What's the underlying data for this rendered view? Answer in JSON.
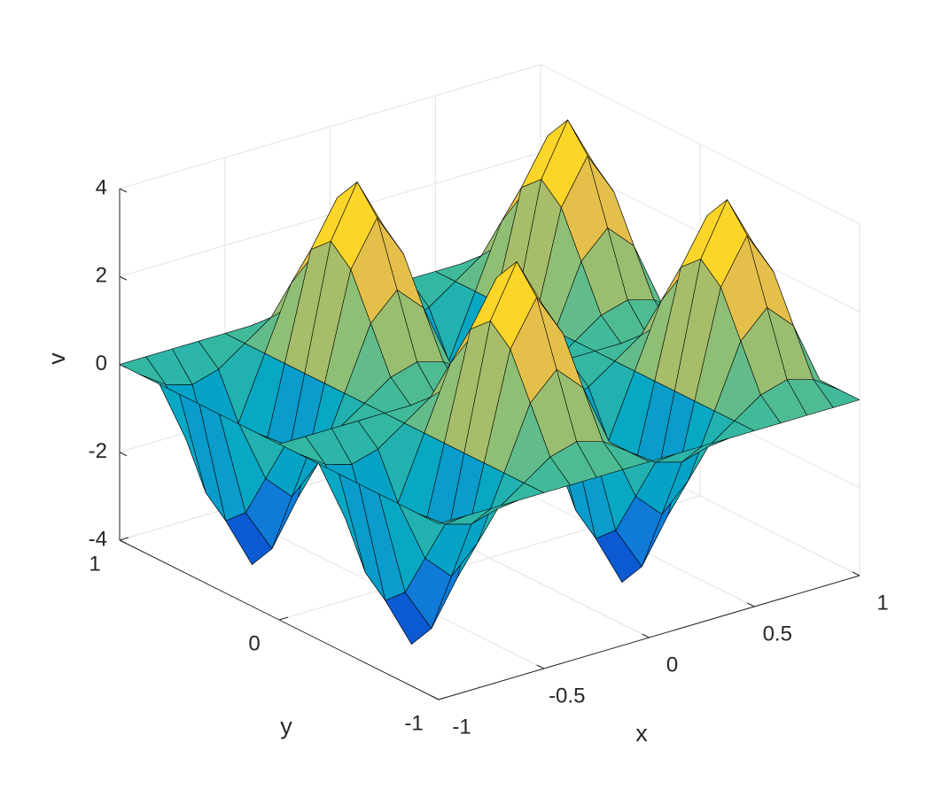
{
  "chart_data": {
    "type": "surface",
    "xlabel": "x",
    "ylabel": "y",
    "zlabel": "v",
    "x": [
      -1,
      -0.875,
      -0.75,
      -0.625,
      -0.5,
      -0.375,
      -0.25,
      -0.125,
      0,
      0.125,
      0.25,
      0.375,
      0.5,
      0.625,
      0.75,
      0.875,
      1
    ],
    "y": [
      -1,
      -0.875,
      -0.75,
      -0.625,
      -0.5,
      -0.375,
      -0.25,
      -0.125,
      0,
      0.125,
      0.25,
      0.375,
      0.5,
      0.625,
      0.75,
      0.875,
      1
    ],
    "z": [
      [
        0,
        0,
        0,
        0,
        0,
        0,
        0,
        0,
        0,
        0,
        0,
        0,
        0,
        0,
        0,
        0,
        0
      ],
      [
        0,
        -0.414,
        -0.586,
        -0.414,
        0,
        0.414,
        0.586,
        0.414,
        0,
        -0.414,
        -0.586,
        -0.414,
        0,
        0.414,
        0.586,
        0.414,
        0
      ],
      [
        0,
        -1.414,
        -2,
        -1.414,
        0,
        1.414,
        2,
        1.414,
        0,
        -1.414,
        -2,
        -1.414,
        0,
        1.414,
        2,
        1.414,
        0
      ],
      [
        0,
        -2.414,
        -3.414,
        -2.414,
        0,
        2.414,
        3.414,
        2.414,
        0,
        -2.414,
        -3.414,
        -2.414,
        0,
        2.414,
        3.414,
        2.414,
        0
      ],
      [
        0,
        -2.828,
        -4,
        -2.828,
        0,
        2.828,
        4,
        2.828,
        0,
        -2.828,
        -4,
        -2.828,
        0,
        2.828,
        4,
        2.828,
        0
      ],
      [
        0,
        -2.414,
        -3.414,
        -2.414,
        0,
        2.414,
        3.414,
        2.414,
        0,
        -2.414,
        -3.414,
        -2.414,
        0,
        2.414,
        3.414,
        2.414,
        0
      ],
      [
        0,
        -1.414,
        -2,
        -1.414,
        0,
        1.414,
        2,
        1.414,
        0,
        -1.414,
        -2,
        -1.414,
        0,
        1.414,
        2,
        1.414,
        0
      ],
      [
        0,
        -0.414,
        -0.586,
        -0.414,
        0,
        0.414,
        0.586,
        0.414,
        0,
        -0.414,
        -0.586,
        -0.414,
        0,
        0.414,
        0.586,
        0.414,
        0
      ],
      [
        0,
        0,
        0,
        0,
        0,
        0,
        0,
        0,
        0,
        0,
        0,
        0,
        0,
        0,
        0,
        0,
        0
      ],
      [
        0,
        -0.414,
        -0.586,
        -0.414,
        0,
        0.414,
        0.586,
        0.414,
        0,
        -0.414,
        -0.586,
        -0.414,
        0,
        0.414,
        0.586,
        0.414,
        0
      ],
      [
        0,
        -1.414,
        -2,
        -1.414,
        0,
        1.414,
        2,
        1.414,
        0,
        -1.414,
        -2,
        -1.414,
        0,
        1.414,
        2,
        1.414,
        0
      ],
      [
        0,
        -2.414,
        -3.414,
        -2.414,
        0,
        2.414,
        3.414,
        2.414,
        0,
        -2.414,
        -3.414,
        -2.414,
        0,
        2.414,
        3.414,
        2.414,
        0
      ],
      [
        0,
        -2.828,
        -4,
        -2.828,
        0,
        2.828,
        4,
        2.828,
        0,
        -2.828,
        -4,
        -2.828,
        0,
        2.828,
        4,
        2.828,
        0
      ],
      [
        0,
        -2.414,
        -3.414,
        -2.414,
        0,
        2.414,
        3.414,
        2.414,
        0,
        -2.414,
        -3.414,
        -2.414,
        0,
        2.414,
        3.414,
        2.414,
        0
      ],
      [
        0,
        -1.414,
        -2,
        -1.414,
        0,
        1.414,
        2,
        1.414,
        0,
        -1.414,
        -2,
        -1.414,
        0,
        1.414,
        2,
        1.414,
        0
      ],
      [
        0,
        -0.414,
        -0.586,
        -0.414,
        0,
        0.414,
        0.586,
        0.414,
        0,
        -0.414,
        -0.586,
        -0.414,
        0,
        0.414,
        0.586,
        0.414,
        0
      ],
      [
        0,
        0,
        0,
        0,
        0,
        0,
        0,
        0,
        0,
        0,
        0,
        0,
        0,
        0,
        0,
        0,
        0
      ]
    ],
    "xlim": [
      -1,
      1
    ],
    "ylim": [
      -1,
      1
    ],
    "zlim": [
      -4,
      4
    ],
    "xticks": [
      -1,
      -0.5,
      0,
      0.5,
      1
    ],
    "yticks": [
      -1,
      0,
      1
    ],
    "zticks": [
      -4,
      -2,
      0,
      2,
      4
    ],
    "grid": true,
    "colormap": "parula",
    "edgecolor": "#000000"
  }
}
